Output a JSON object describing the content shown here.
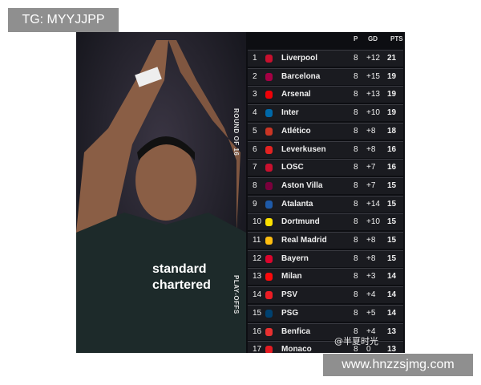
{
  "watermark_top": "TG: MYYJJPP",
  "watermark_bottom": "www.hnzzsjmg.com",
  "image_credit": "@半夏时光",
  "side_labels": {
    "top": "ROUND OF 16",
    "bottom": "PLAY-OFFS"
  },
  "table": {
    "columns": [
      "P",
      "GD",
      "PTS"
    ],
    "rows": [
      {
        "rank": 1,
        "team": "Liverpool",
        "p": 8,
        "gd": "+12",
        "pts": 21
      },
      {
        "rank": 2,
        "team": "Barcelona",
        "p": 8,
        "gd": "+15",
        "pts": 19
      },
      {
        "rank": 3,
        "team": "Arsenal",
        "p": 8,
        "gd": "+13",
        "pts": 19
      },
      {
        "rank": 4,
        "team": "Inter",
        "p": 8,
        "gd": "+10",
        "pts": 19
      },
      {
        "rank": 5,
        "team": "Atlético",
        "p": 8,
        "gd": "+8",
        "pts": 18
      },
      {
        "rank": 6,
        "team": "Leverkusen",
        "p": 8,
        "gd": "+8",
        "pts": 16
      },
      {
        "rank": 7,
        "team": "LOSC",
        "p": 8,
        "gd": "+7",
        "pts": 16
      },
      {
        "rank": 8,
        "team": "Aston Villa",
        "p": 8,
        "gd": "+7",
        "pts": 15
      },
      {
        "rank": 9,
        "team": "Atalanta",
        "p": 8,
        "gd": "+14",
        "pts": 15
      },
      {
        "rank": 10,
        "team": "Dortmund",
        "p": 8,
        "gd": "+10",
        "pts": 15
      },
      {
        "rank": 11,
        "team": "Real Madrid",
        "p": 8,
        "gd": "+8",
        "pts": 15
      },
      {
        "rank": 12,
        "team": "Bayern",
        "p": 8,
        "gd": "+8",
        "pts": 15
      },
      {
        "rank": 13,
        "team": "Milan",
        "p": 8,
        "gd": "+3",
        "pts": 14
      },
      {
        "rank": 14,
        "team": "PSV",
        "p": 8,
        "gd": "+4",
        "pts": 14
      },
      {
        "rank": 15,
        "team": "PSG",
        "p": 8,
        "gd": "+5",
        "pts": 14
      },
      {
        "rank": 16,
        "team": "Benfica",
        "p": 8,
        "gd": "+4",
        "pts": 13
      },
      {
        "rank": 17,
        "team": "Monaco",
        "p": 8,
        "gd": "0",
        "pts": 13
      }
    ]
  }
}
